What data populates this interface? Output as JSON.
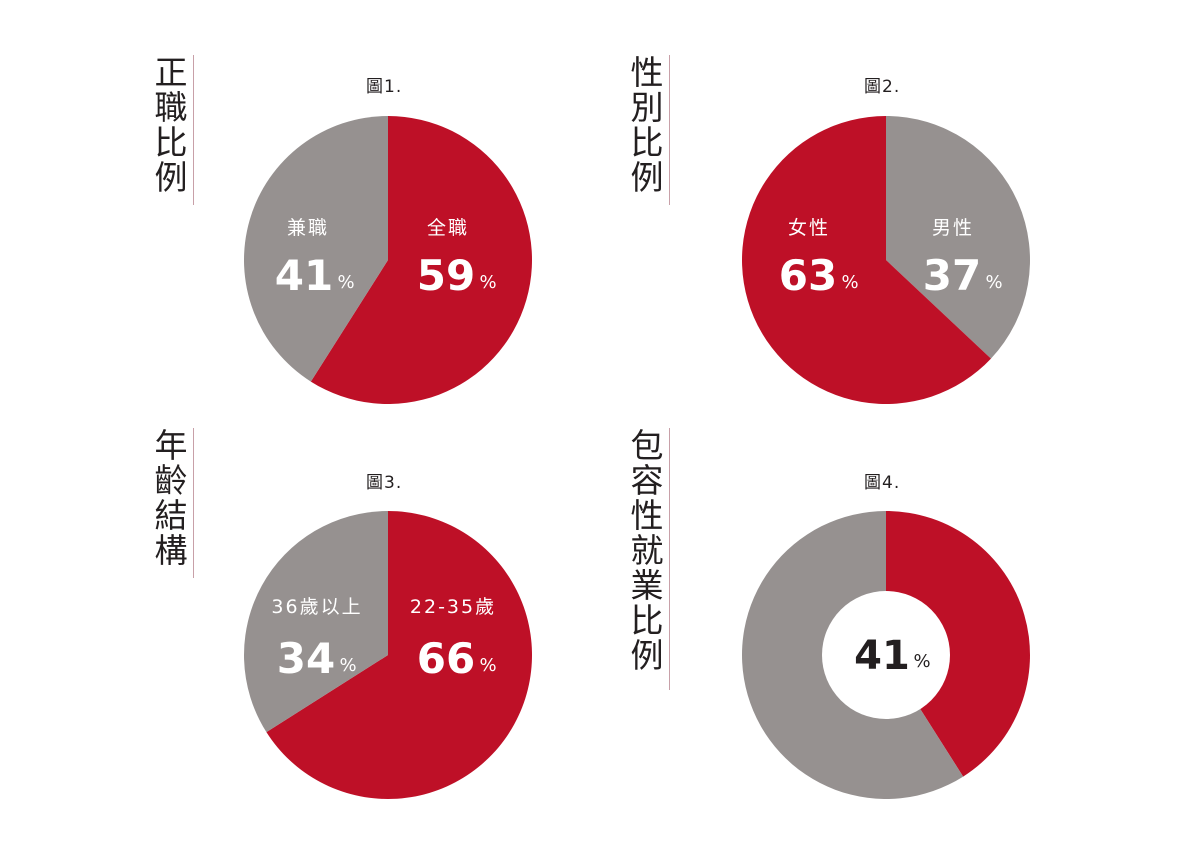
{
  "colors": {
    "red": "#be1027",
    "gray": "#969190",
    "text": "#231f20",
    "white": "#ffffff"
  },
  "panels": [
    {
      "title": "正職比例",
      "caption": "圖1."
    },
    {
      "title": "性別比例",
      "caption": "圖2."
    },
    {
      "title": "年齡結構",
      "caption": "圖3."
    },
    {
      "title": "包容性就業比例",
      "caption": "圖4."
    }
  ],
  "chart_data": [
    {
      "type": "pie",
      "title": "正職比例",
      "caption": "圖1.",
      "slices": [
        {
          "label": "全職",
          "value": 59,
          "display": "59",
          "unit": "%",
          "color": "#be1027"
        },
        {
          "label": "兼職",
          "value": 41,
          "display": "41",
          "unit": "%",
          "color": "#969190"
        }
      ]
    },
    {
      "type": "pie",
      "title": "性別比例",
      "caption": "圖2.",
      "slices": [
        {
          "label": "男性",
          "value": 37,
          "display": "37",
          "unit": "%",
          "color": "#969190"
        },
        {
          "label": "女性",
          "value": 63,
          "display": "63",
          "unit": "%",
          "color": "#be1027"
        }
      ]
    },
    {
      "type": "pie",
      "title": "年齡結構",
      "caption": "圖3.",
      "slices": [
        {
          "label": "22-35歲",
          "value": 66,
          "display": "66",
          "unit": "%",
          "color": "#be1027"
        },
        {
          "label": "36歲以上",
          "value": 34,
          "display": "34",
          "unit": "%",
          "color": "#969190"
        }
      ]
    },
    {
      "type": "pie",
      "title": "包容性就業比例",
      "caption": "圖4.",
      "donut": true,
      "center_display": "41",
      "center_unit": "%",
      "slices": [
        {
          "label": "",
          "value": 41,
          "color": "#be1027"
        },
        {
          "label": "",
          "value": 59,
          "color": "#969190"
        }
      ]
    }
  ]
}
